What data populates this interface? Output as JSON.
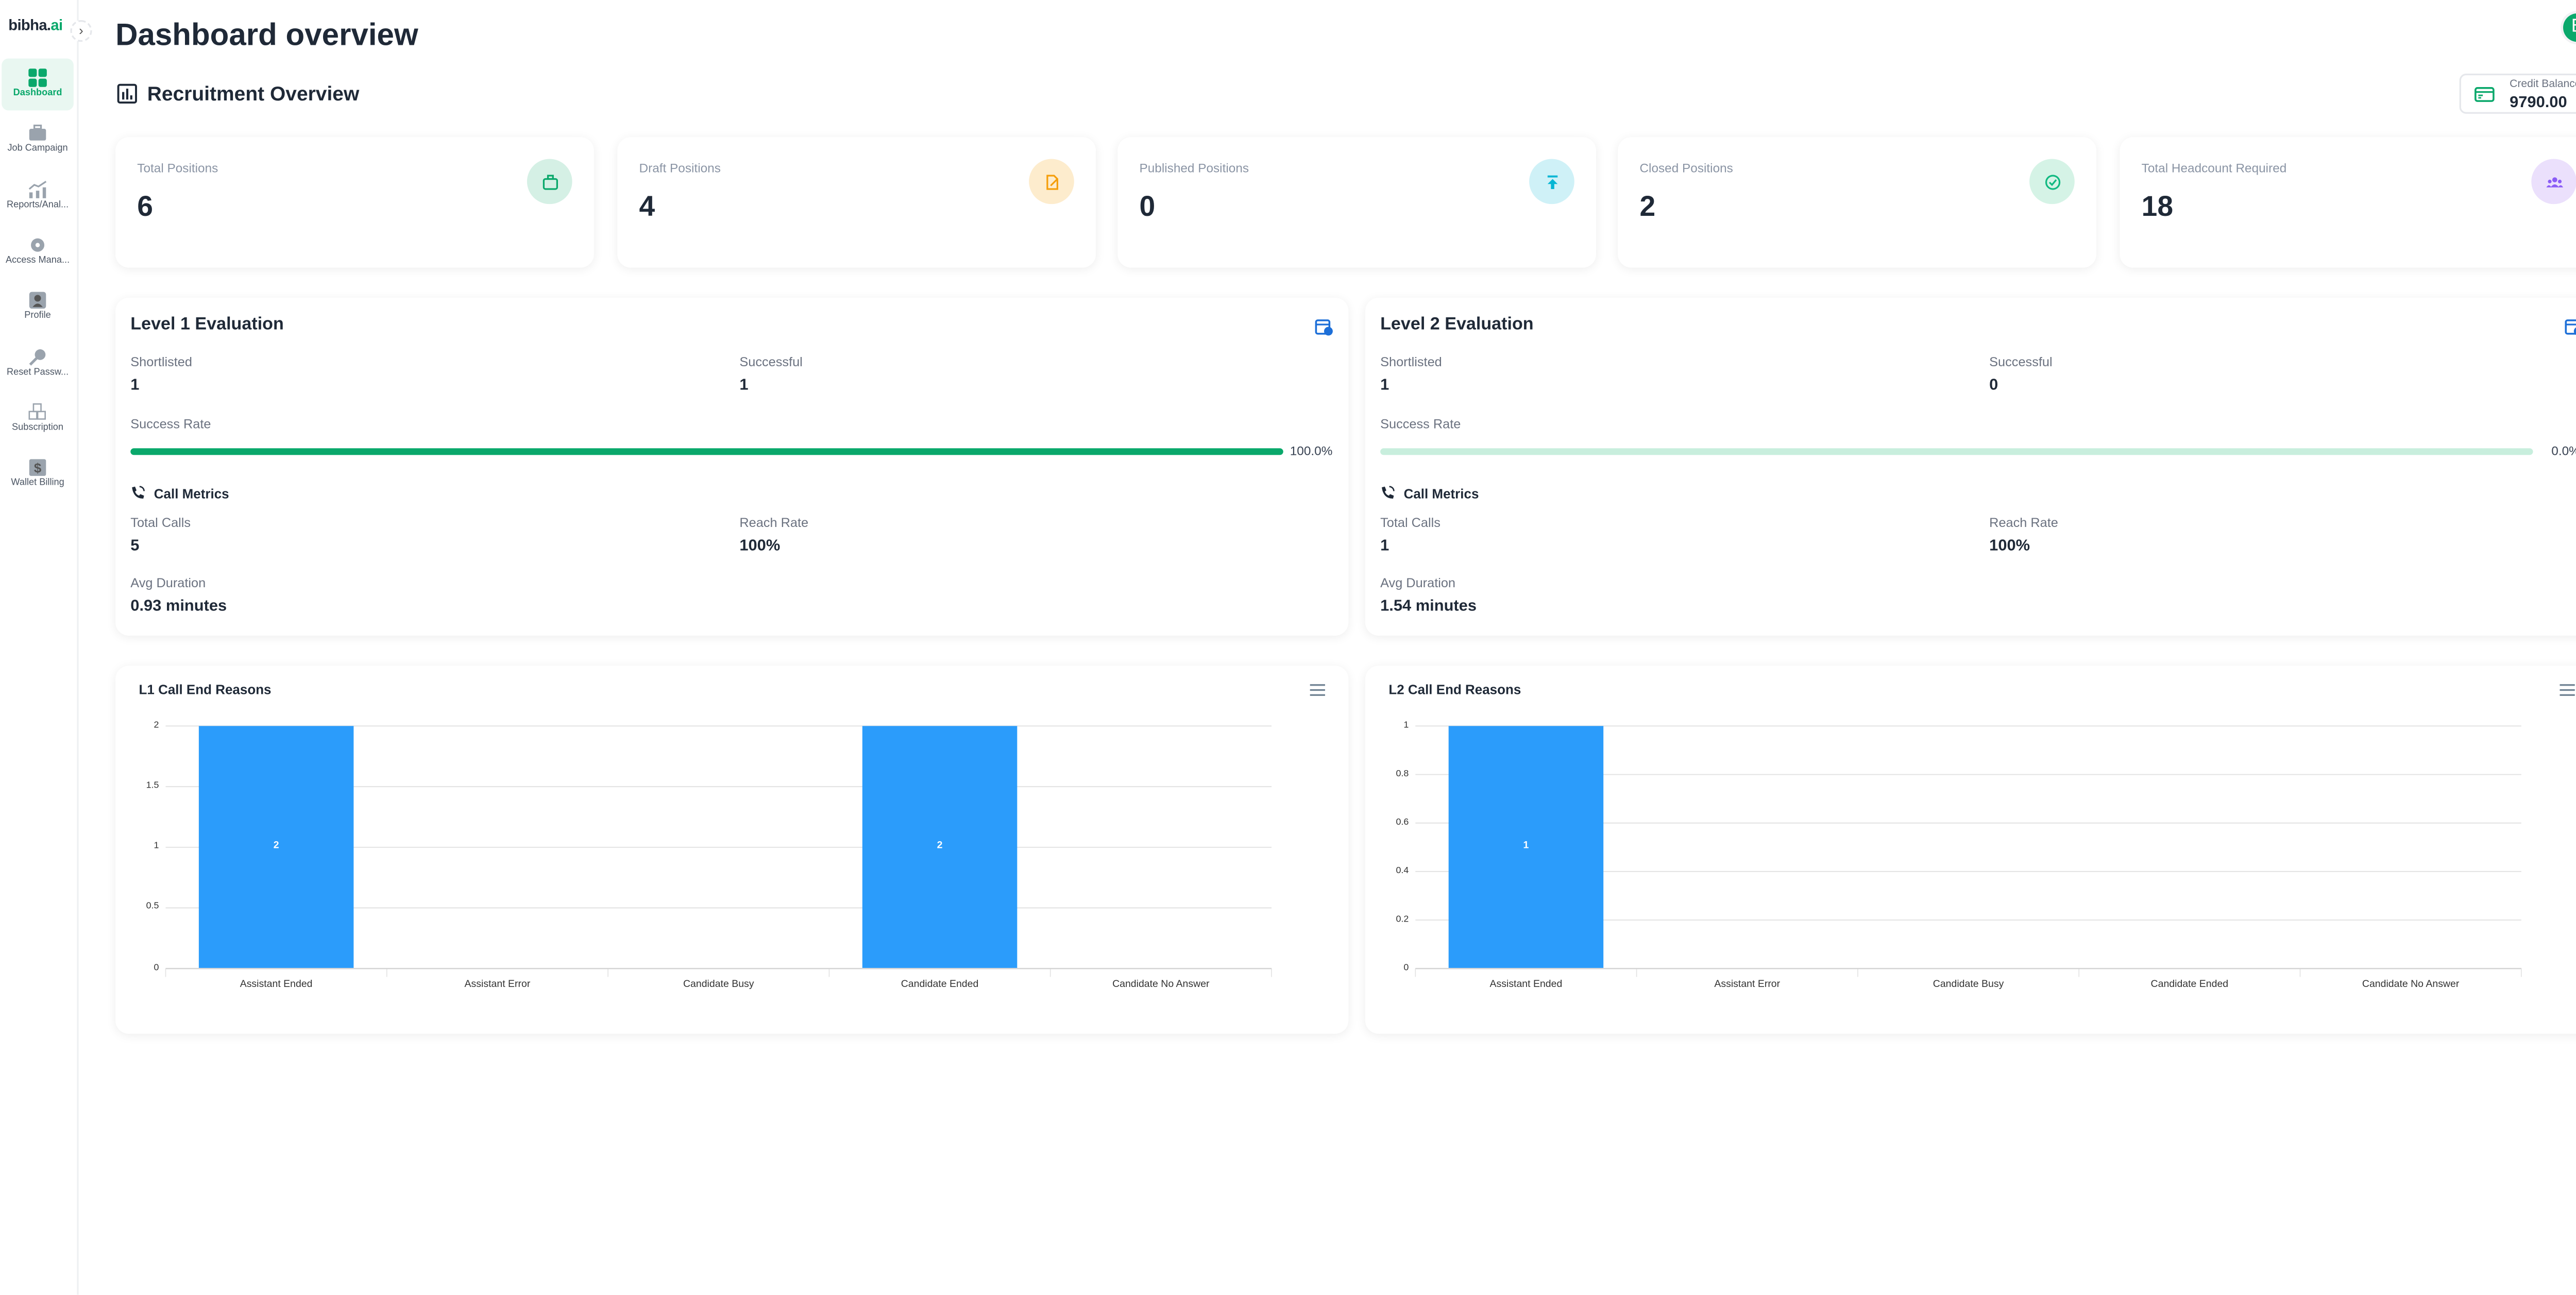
{
  "brand": {
    "name_a": "bibha.",
    "name_b": "ai"
  },
  "sidebar": {
    "items": [
      {
        "label": "Dashboard",
        "icon": "grid-icon"
      },
      {
        "label": "Job Campaign",
        "icon": "briefcase-icon"
      },
      {
        "label": "Reports/Anal...",
        "icon": "chart-icon"
      },
      {
        "label": "Access Mana...",
        "icon": "gear-icon"
      },
      {
        "label": "Profile",
        "icon": "user-icon"
      },
      {
        "label": "Reset Passw...",
        "icon": "key-icon"
      },
      {
        "label": "Subscription",
        "icon": "boxes-icon"
      },
      {
        "label": "Wallet Billing",
        "icon": "dollar-icon"
      }
    ]
  },
  "header": {
    "title": "Dashboard overview",
    "section": "Recruitment Overview",
    "avatar": "B"
  },
  "credit": {
    "label": "Credit Balance",
    "value": "9790.00"
  },
  "stats": [
    {
      "label": "Total Positions",
      "value": "6",
      "color": "#0aa86b",
      "bg": "#d5f0e5"
    },
    {
      "label": "Draft Positions",
      "value": "4",
      "color": "#f59e0b",
      "bg": "#fdeccd"
    },
    {
      "label": "Published Positions",
      "value": "0",
      "color": "#06b6d4",
      "bg": "#cff1f7"
    },
    {
      "label": "Closed Positions",
      "value": "2",
      "color": "#10b981",
      "bg": "#d5f3e6"
    },
    {
      "label": "Total Headcount Required",
      "value": "18",
      "color": "#8b5cf6",
      "bg": "#ebe0fc"
    }
  ],
  "evals": [
    {
      "title": "Level 1 Evaluation",
      "shortlisted_label": "Shortlisted",
      "shortlisted": "1",
      "successful_label": "Successful",
      "successful": "1",
      "rate_label": "Success Rate",
      "rate": 100,
      "rate_text": "100.0%",
      "metrics_label": "Call Metrics",
      "calls_label": "Total Calls",
      "calls": "5",
      "reach_label": "Reach Rate",
      "reach": "100%",
      "dur_label": "Avg Duration",
      "dur": "0.93 minutes"
    },
    {
      "title": "Level 2 Evaluation",
      "shortlisted_label": "Shortlisted",
      "shortlisted": "1",
      "successful_label": "Successful",
      "successful": "0",
      "rate_label": "Success Rate",
      "rate": 0,
      "rate_text": "0.0%",
      "metrics_label": "Call Metrics",
      "calls_label": "Total Calls",
      "calls": "1",
      "reach_label": "Reach Rate",
      "reach": "100%",
      "dur_label": "Avg Duration",
      "dur": "1.54 minutes"
    }
  ],
  "chart_data": [
    {
      "type": "bar",
      "title": "L1 Call End Reasons",
      "categories": [
        "Assistant Ended",
        "Assistant Error",
        "Candidate Busy",
        "Candidate Ended",
        "Candidate No Answer"
      ],
      "values": [
        2,
        0,
        0,
        2,
        0
      ],
      "ylim": [
        0,
        2
      ],
      "yticks": [
        "0",
        "0.5",
        "1",
        "1.5",
        "2"
      ],
      "color": "#2b9cfb",
      "grid": true
    },
    {
      "type": "bar",
      "title": "L2 Call End Reasons",
      "categories": [
        "Assistant Ended",
        "Assistant Error",
        "Candidate Busy",
        "Candidate Ended",
        "Candidate No Answer"
      ],
      "values": [
        1,
        0,
        0,
        0,
        0
      ],
      "ylim": [
        0,
        1
      ],
      "yticks": [
        "0",
        "0.2",
        "0.4",
        "0.6",
        "0.8",
        "1"
      ],
      "color": "#2b9cfb",
      "grid": true
    }
  ]
}
